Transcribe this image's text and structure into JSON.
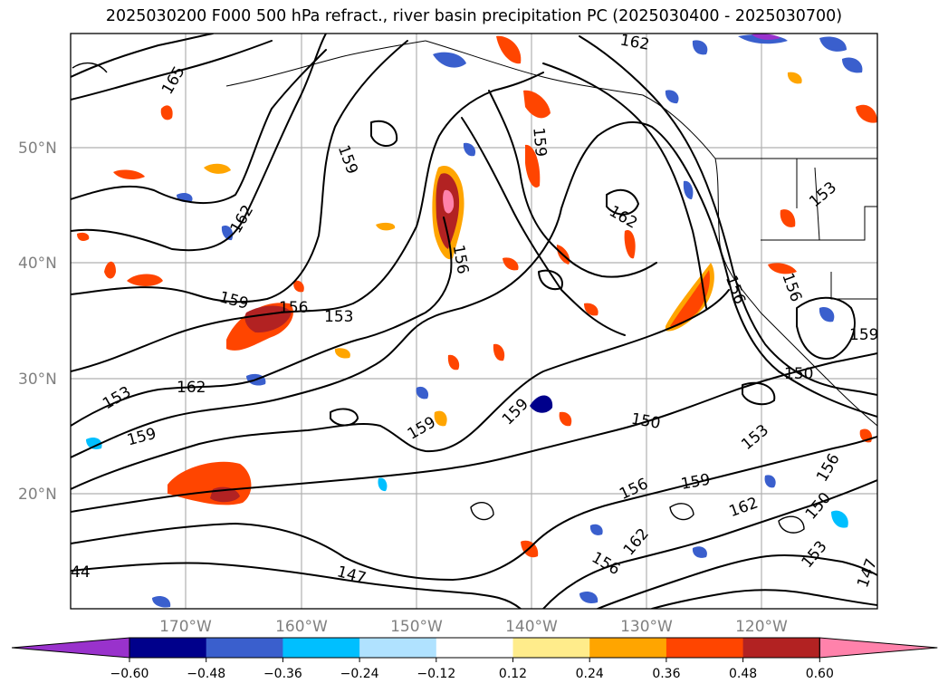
{
  "title": "2025030200 F000 500 hPa refract., river basin precipitation PC (2025030400 - 2025030700)",
  "map": {
    "lat_labels": [
      "50°N",
      "40°N",
      "30°N",
      "20°N"
    ],
    "lon_labels": [
      "170°W",
      "160°W",
      "150°W",
      "140°W",
      "130°W",
      "120°W"
    ],
    "contour_labels": [
      "165",
      "162",
      "159",
      "156",
      "153",
      "150",
      "147",
      "44"
    ],
    "grid": true
  },
  "colorbar": {
    "tick_labels": [
      "−0.60",
      "−0.48",
      "−0.36",
      "−0.24",
      "−0.12",
      "0.12",
      "0.24",
      "0.36",
      "0.48",
      "0.60"
    ],
    "colors": [
      "#9932cc",
      "#00008b",
      "#3a5fcd",
      "#00bfff",
      "#b0e2ff",
      "#ffffff",
      "#ffec8b",
      "#ffa500",
      "#ff4500",
      "#b22222",
      "#ff82ab"
    ],
    "extend": "both"
  },
  "colors": {
    "frame": "#000000",
    "grid": "#b0b0b0",
    "tick_text": "#808080"
  }
}
